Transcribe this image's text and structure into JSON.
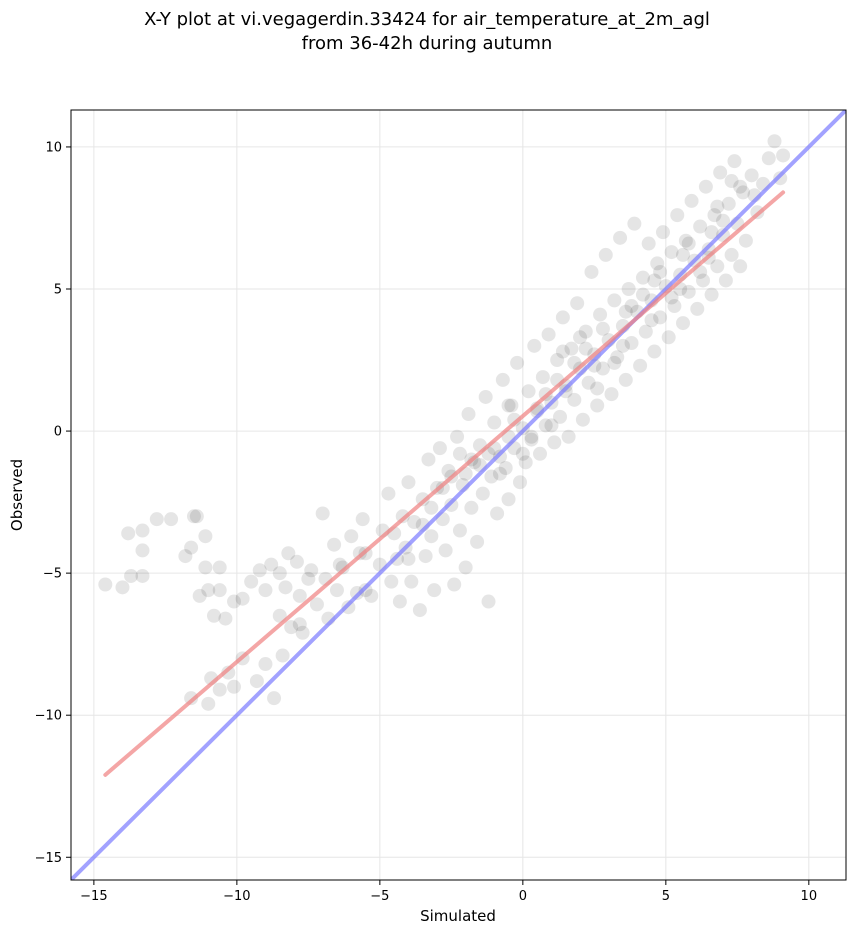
{
  "chart_data": {
    "type": "scatter",
    "title_lines": [
      "X-Y plot at vi.vegagerdin.33424 for air_temperature_at_2m_agl",
      "from 36-42h during autumn"
    ],
    "xlabel": "Simulated",
    "ylabel": "Observed",
    "xlim": [
      -15.8,
      11.3
    ],
    "ylim": [
      -15.8,
      11.3
    ],
    "xticks": [
      -15,
      -10,
      -5,
      0,
      5,
      10
    ],
    "yticks": [
      -15,
      -10,
      -5,
      0,
      5,
      10
    ],
    "xtick_labels": [
      "−15",
      "−10",
      "−5",
      "0",
      "5",
      "10"
    ],
    "ytick_labels": [
      "−15",
      "−10",
      "−5",
      "0",
      "5",
      "10"
    ],
    "grid": true,
    "point_color": "#000000",
    "fit_line": {
      "x": [
        -14.6,
        9.1
      ],
      "y": [
        -12.1,
        8.4
      ],
      "color": "#f08080"
    },
    "identity_line": {
      "x": [
        -15.8,
        11.3
      ],
      "y": [
        -15.8,
        11.3
      ],
      "color": "#7b7bff"
    },
    "points": [
      [
        -14.6,
        -5.4
      ],
      [
        -14.0,
        -5.5
      ],
      [
        -13.8,
        -3.6
      ],
      [
        -13.7,
        -5.1
      ],
      [
        -13.3,
        -3.5
      ],
      [
        -13.3,
        -4.2
      ],
      [
        -13.3,
        -5.1
      ],
      [
        -12.8,
        -3.1
      ],
      [
        -12.3,
        -3.1
      ],
      [
        -11.8,
        -4.4
      ],
      [
        -11.6,
        -4.1
      ],
      [
        -11.5,
        -3.0
      ],
      [
        -11.4,
        -3.0
      ],
      [
        -11.3,
        -5.8
      ],
      [
        -11.1,
        -4.8
      ],
      [
        -11.1,
        -3.7
      ],
      [
        -11.0,
        -5.6
      ],
      [
        -10.8,
        -6.5
      ],
      [
        -10.6,
        -4.8
      ],
      [
        -10.6,
        -5.6
      ],
      [
        -10.4,
        -6.6
      ],
      [
        -10.1,
        -6.0
      ],
      [
        -9.8,
        -5.9
      ],
      [
        -9.5,
        -5.3
      ],
      [
        -9.2,
        -4.9
      ],
      [
        -9.0,
        -5.6
      ],
      [
        -8.8,
        -4.7
      ],
      [
        -8.5,
        -5.0
      ],
      [
        -8.5,
        -6.5
      ],
      [
        -8.3,
        -5.5
      ],
      [
        -8.2,
        -4.3
      ],
      [
        -8.1,
        -6.9
      ],
      [
        -7.9,
        -4.6
      ],
      [
        -7.8,
        -5.8
      ],
      [
        -7.7,
        -7.1
      ],
      [
        -7.5,
        -5.2
      ],
      [
        -7.4,
        -4.9
      ],
      [
        -7.2,
        -6.1
      ],
      [
        -7.0,
        -2.9
      ],
      [
        -6.9,
        -5.2
      ],
      [
        -6.8,
        -6.6
      ],
      [
        -6.6,
        -4.0
      ],
      [
        -6.5,
        -5.6
      ],
      [
        -6.3,
        -4.8
      ],
      [
        -6.1,
        -6.2
      ],
      [
        -6.0,
        -3.7
      ],
      [
        -5.8,
        -5.7
      ],
      [
        -5.7,
        -4.3
      ],
      [
        -5.6,
        -3.1
      ],
      [
        -5.5,
        -5.6
      ],
      [
        -5.3,
        -5.8
      ],
      [
        -5.0,
        -4.7
      ],
      [
        -4.9,
        -3.5
      ],
      [
        -4.7,
        -2.2
      ],
      [
        -4.6,
        -5.3
      ],
      [
        -4.4,
        -4.5
      ],
      [
        -4.3,
        -6.0
      ],
      [
        -4.2,
        -3.0
      ],
      [
        -4.1,
        -4.1
      ],
      [
        -4.0,
        -1.8
      ],
      [
        -3.9,
        -5.3
      ],
      [
        -3.8,
        -3.2
      ],
      [
        -3.6,
        -6.3
      ],
      [
        -3.5,
        -2.4
      ],
      [
        -3.4,
        -4.4
      ],
      [
        -3.3,
        -1.0
      ],
      [
        -3.2,
        -3.7
      ],
      [
        -3.1,
        -5.6
      ],
      [
        -3.0,
        -2.0
      ],
      [
        -2.9,
        -0.6
      ],
      [
        -2.8,
        -3.1
      ],
      [
        -2.7,
        -4.2
      ],
      [
        -2.6,
        -1.4
      ],
      [
        -2.5,
        -2.6
      ],
      [
        -2.4,
        -5.4
      ],
      [
        -2.3,
        -0.2
      ],
      [
        -2.2,
        -3.5
      ],
      [
        -2.1,
        -1.9
      ],
      [
        -2.0,
        -4.8
      ],
      [
        -1.9,
        0.6
      ],
      [
        -1.8,
        -2.7
      ],
      [
        -1.7,
        -1.1
      ],
      [
        -1.6,
        -3.9
      ],
      [
        -1.5,
        -0.5
      ],
      [
        -1.4,
        -2.2
      ],
      [
        -1.3,
        1.2
      ],
      [
        -1.2,
        -6.0
      ],
      [
        -1.1,
        -1.6
      ],
      [
        -1.0,
        0.3
      ],
      [
        -0.9,
        -2.9
      ],
      [
        -0.8,
        -0.9
      ],
      [
        -0.7,
        1.8
      ],
      [
        -0.6,
        -1.3
      ],
      [
        -0.5,
        -2.4
      ],
      [
        -0.4,
        0.9
      ],
      [
        -0.3,
        -0.6
      ],
      [
        -0.2,
        2.4
      ],
      [
        -0.1,
        -1.8
      ],
      [
        0.0,
        0.1
      ],
      [
        0.1,
        -1.1
      ],
      [
        0.2,
        1.4
      ],
      [
        0.3,
        -0.3
      ],
      [
        0.4,
        3.0
      ],
      [
        0.5,
        0.7
      ],
      [
        0.6,
        -0.8
      ],
      [
        0.7,
        1.9
      ],
      [
        0.8,
        0.2
      ],
      [
        0.9,
        3.4
      ],
      [
        1.0,
        1.0
      ],
      [
        1.1,
        -0.4
      ],
      [
        1.2,
        2.5
      ],
      [
        1.3,
        0.5
      ],
      [
        1.4,
        4.0
      ],
      [
        1.5,
        1.6
      ],
      [
        1.6,
        -0.2
      ],
      [
        1.7,
        2.9
      ],
      [
        1.8,
        1.1
      ],
      [
        1.9,
        4.5
      ],
      [
        2.0,
        2.2
      ],
      [
        2.1,
        0.4
      ],
      [
        2.2,
        3.5
      ],
      [
        2.3,
        1.7
      ],
      [
        2.4,
        5.6
      ],
      [
        2.5,
        2.7
      ],
      [
        2.6,
        0.9
      ],
      [
        2.7,
        4.1
      ],
      [
        2.8,
        2.2
      ],
      [
        2.9,
        6.2
      ],
      [
        3.0,
        3.2
      ],
      [
        3.1,
        1.3
      ],
      [
        3.2,
        4.6
      ],
      [
        3.3,
        2.6
      ],
      [
        3.4,
        6.8
      ],
      [
        3.5,
        3.7
      ],
      [
        3.6,
        1.8
      ],
      [
        3.7,
        5.0
      ],
      [
        3.8,
        3.1
      ],
      [
        3.9,
        7.3
      ],
      [
        4.0,
        4.2
      ],
      [
        4.1,
        2.3
      ],
      [
        4.2,
        5.4
      ],
      [
        4.3,
        3.5
      ],
      [
        4.4,
        6.6
      ],
      [
        4.5,
        4.6
      ],
      [
        4.6,
        2.8
      ],
      [
        4.7,
        5.9
      ],
      [
        4.8,
        4.0
      ],
      [
        4.9,
        7.0
      ],
      [
        5.0,
        5.1
      ],
      [
        5.1,
        3.3
      ],
      [
        5.2,
        6.3
      ],
      [
        5.3,
        4.4
      ],
      [
        5.4,
        7.6
      ],
      [
        5.5,
        5.5
      ],
      [
        5.6,
        3.8
      ],
      [
        5.7,
        6.7
      ],
      [
        5.8,
        4.9
      ],
      [
        5.9,
        8.1
      ],
      [
        6.0,
        6.0
      ],
      [
        6.1,
        4.3
      ],
      [
        6.2,
        7.2
      ],
      [
        6.3,
        5.3
      ],
      [
        6.4,
        8.6
      ],
      [
        6.5,
        6.4
      ],
      [
        6.6,
        4.8
      ],
      [
        6.7,
        7.6
      ],
      [
        6.8,
        5.8
      ],
      [
        6.9,
        9.1
      ],
      [
        7.0,
        6.9
      ],
      [
        7.1,
        5.3
      ],
      [
        7.2,
        8.0
      ],
      [
        7.3,
        6.2
      ],
      [
        7.4,
        9.5
      ],
      [
        7.5,
        7.3
      ],
      [
        7.6,
        5.8
      ],
      [
        7.7,
        8.4
      ],
      [
        7.8,
        6.7
      ],
      [
        8.0,
        9.0
      ],
      [
        8.2,
        7.7
      ],
      [
        8.4,
        8.7
      ],
      [
        8.6,
        9.6
      ],
      [
        8.8,
        10.2
      ],
      [
        9.0,
        8.9
      ],
      [
        9.1,
        9.7
      ],
      [
        -9.3,
        -8.8
      ],
      [
        -9.0,
        -8.2
      ],
      [
        -8.7,
        -9.4
      ],
      [
        -8.4,
        -7.9
      ],
      [
        -10.9,
        -8.7
      ],
      [
        -10.6,
        -9.1
      ],
      [
        -10.3,
        -8.5
      ],
      [
        -11.6,
        -9.4
      ],
      [
        -11.0,
        -9.6
      ],
      [
        -9.8,
        -8.0
      ],
      [
        -10.1,
        -9.0
      ],
      [
        -7.8,
        -6.8
      ],
      [
        -6.4,
        -4.7
      ],
      [
        -5.5,
        -4.3
      ],
      [
        -3.2,
        -2.7
      ],
      [
        -2.8,
        -2.0
      ],
      [
        -2.0,
        -1.5
      ],
      [
        -1.5,
        -1.2
      ],
      [
        -1.0,
        -0.6
      ],
      [
        -0.5,
        -0.2
      ],
      [
        0.5,
        0.8
      ],
      [
        1.5,
        1.4
      ],
      [
        2.5,
        2.3
      ],
      [
        3.5,
        3.0
      ],
      [
        4.5,
        3.9
      ],
      [
        5.5,
        5.0
      ],
      [
        6.5,
        6.1
      ],
      [
        7.0,
        7.4
      ],
      [
        1.2,
        1.8
      ],
      [
        1.8,
        2.4
      ],
      [
        2.2,
        2.9
      ],
      [
        0.8,
        1.3
      ],
      [
        -0.3,
        0.4
      ],
      [
        0.3,
        -0.2
      ],
      [
        -1.2,
        -0.8
      ],
      [
        -0.8,
        -1.5
      ],
      [
        2.8,
        3.6
      ],
      [
        3.2,
        2.4
      ],
      [
        4.2,
        4.8
      ],
      [
        3.8,
        4.4
      ],
      [
        5.8,
        6.6
      ],
      [
        6.2,
        5.6
      ],
      [
        6.8,
        7.9
      ],
      [
        7.3,
        8.8
      ],
      [
        4.8,
        5.6
      ],
      [
        5.2,
        4.7
      ],
      [
        2.0,
        3.3
      ],
      [
        1.0,
        0.2
      ],
      [
        0.0,
        -0.8
      ],
      [
        -0.5,
        0.9
      ],
      [
        -1.8,
        -1.0
      ],
      [
        -2.5,
        -1.6
      ],
      [
        -3.5,
        -3.3
      ],
      [
        -4.0,
        -4.5
      ],
      [
        -4.5,
        -3.6
      ],
      [
        -2.2,
        -0.8
      ],
      [
        1.4,
        2.8
      ],
      [
        2.6,
        1.5
      ],
      [
        3.6,
        4.2
      ],
      [
        4.6,
        5.3
      ],
      [
        5.6,
        6.2
      ],
      [
        6.6,
        7.0
      ],
      [
        7.6,
        8.6
      ],
      [
        8.1,
        8.3
      ]
    ]
  }
}
